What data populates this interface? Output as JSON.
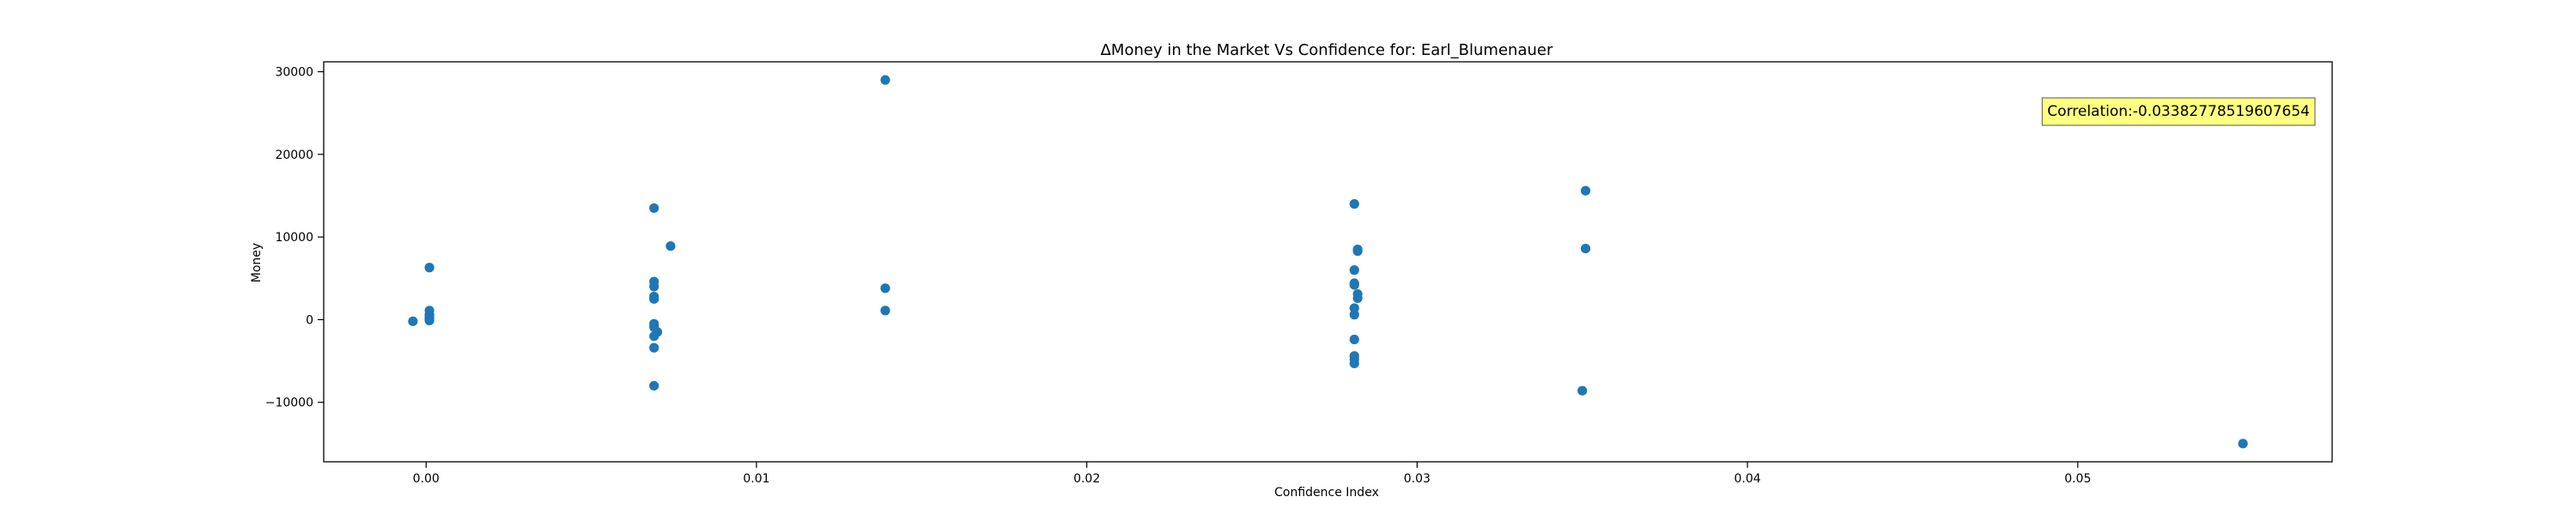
{
  "chart_data": {
    "type": "scatter",
    "title": "ΔMoney in the Market Vs Confidence for: Earl_Blumenauer",
    "xlabel": "Confidence Index",
    "ylabel": "Money",
    "xlim": [
      -0.0031,
      0.0577
    ],
    "ylim": [
      -17200,
      31200
    ],
    "xticks": [
      0.0,
      0.01,
      0.02,
      0.03,
      0.04,
      0.05
    ],
    "xtick_labels": [
      "0.00",
      "0.01",
      "0.02",
      "0.03",
      "0.04",
      "0.05"
    ],
    "yticks": [
      -10000,
      0,
      10000,
      20000,
      30000
    ],
    "ytick_labels": [
      "−10000",
      "0",
      "10000",
      "20000",
      "30000"
    ],
    "grid": false,
    "marker_color": "#1f77b4",
    "annotation": {
      "text": "Correlation:-0.03382778519607654",
      "placement": "top-right",
      "box_color": "#ffff80"
    },
    "points": [
      {
        "x": -0.0004,
        "y": -200
      },
      {
        "x": 0.0001,
        "y": 6300
      },
      {
        "x": 0.0001,
        "y": 1100
      },
      {
        "x": 0.0001,
        "y": 600
      },
      {
        "x": 0.0001,
        "y": 300
      },
      {
        "x": 0.0001,
        "y": 100
      },
      {
        "x": 0.0001,
        "y": -100
      },
      {
        "x": 0.0069,
        "y": 13500
      },
      {
        "x": 0.0074,
        "y": 8900
      },
      {
        "x": 0.0069,
        "y": 4600
      },
      {
        "x": 0.0069,
        "y": 4000
      },
      {
        "x": 0.0069,
        "y": 2800
      },
      {
        "x": 0.0069,
        "y": 2500
      },
      {
        "x": 0.0069,
        "y": -500
      },
      {
        "x": 0.0069,
        "y": -900
      },
      {
        "x": 0.007,
        "y": -1500
      },
      {
        "x": 0.0069,
        "y": -2000
      },
      {
        "x": 0.0069,
        "y": -3400
      },
      {
        "x": 0.0069,
        "y": -8000
      },
      {
        "x": 0.0139,
        "y": 29000
      },
      {
        "x": 0.0139,
        "y": 3800
      },
      {
        "x": 0.0139,
        "y": 1100
      },
      {
        "x": 0.0281,
        "y": 14000
      },
      {
        "x": 0.0282,
        "y": 8500
      },
      {
        "x": 0.0282,
        "y": 8300
      },
      {
        "x": 0.0281,
        "y": 6000
      },
      {
        "x": 0.0281,
        "y": 4400
      },
      {
        "x": 0.0281,
        "y": 4200
      },
      {
        "x": 0.0282,
        "y": 3100
      },
      {
        "x": 0.0282,
        "y": 2600
      },
      {
        "x": 0.0281,
        "y": 1400
      },
      {
        "x": 0.0281,
        "y": 600
      },
      {
        "x": 0.0281,
        "y": -2400
      },
      {
        "x": 0.0281,
        "y": -4400
      },
      {
        "x": 0.0281,
        "y": -4800
      },
      {
        "x": 0.0281,
        "y": -5300
      },
      {
        "x": 0.0351,
        "y": 15600
      },
      {
        "x": 0.0351,
        "y": 8600
      },
      {
        "x": 0.035,
        "y": -8600
      },
      {
        "x": 0.055,
        "y": -15000
      }
    ]
  }
}
